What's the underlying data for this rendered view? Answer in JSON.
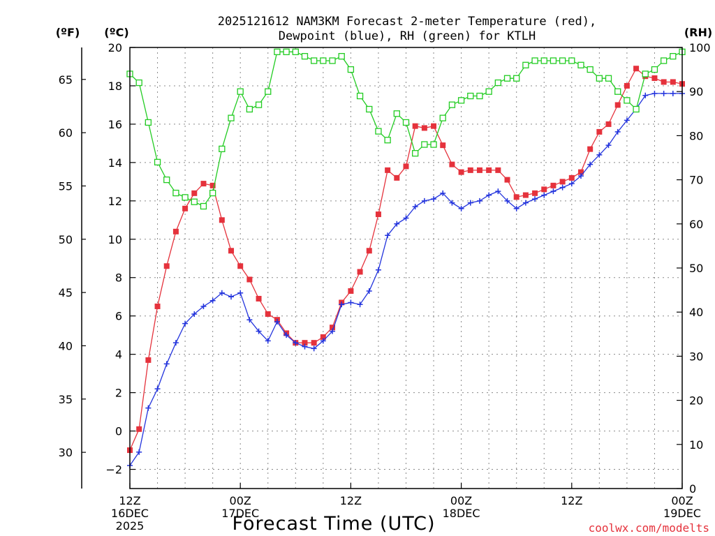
{
  "title_line1": "2025121612 NAM3KM Forecast 2-meter Temperature (red),",
  "title_line2": "Dewpoint (blue), RH (green) for KTLH",
  "units": {
    "fahrenheit": "(ºF)",
    "celsius": "(ºC)",
    "rh": "(RH)"
  },
  "xlabel": "Forecast Time (UTC)",
  "credit": "coolwx.com/modelts",
  "colors": {
    "temperature": "#e5323c",
    "dewpoint": "#2233dd",
    "rh": "#22cc22",
    "grid": "#888888"
  },
  "chart_data": {
    "type": "line",
    "title": "2025121612 NAM3KM Forecast 2-meter Temperature (red), Dewpoint (blue), RH (green) for KTLH",
    "x_unit": "forecast hour",
    "x": [
      0,
      1,
      2,
      3,
      4,
      5,
      6,
      7,
      8,
      9,
      10,
      11,
      12,
      13,
      14,
      15,
      16,
      17,
      18,
      19,
      20,
      21,
      22,
      23,
      24,
      25,
      26,
      27,
      28,
      29,
      30,
      31,
      32,
      33,
      34,
      35,
      36,
      37,
      38,
      39,
      40,
      41,
      42,
      43,
      44,
      45,
      46,
      47,
      48,
      49,
      50,
      51,
      52,
      53,
      54,
      55,
      56,
      57,
      58,
      59,
      60
    ],
    "xlim": [
      0,
      60
    ],
    "x_ticks": [
      {
        "h": 0,
        "lines": [
          "12Z",
          "16DEC",
          "2025"
        ]
      },
      {
        "h": 12,
        "lines": [
          "00Z",
          "17DEC"
        ]
      },
      {
        "h": 24,
        "lines": [
          "12Z"
        ]
      },
      {
        "h": 36,
        "lines": [
          "00Z",
          "18DEC"
        ]
      },
      {
        "h": 48,
        "lines": [
          "12Z"
        ]
      },
      {
        "h": 60,
        "lines": [
          "00Z",
          "19DEC"
        ]
      }
    ],
    "left_axis": {
      "label": "(ºC)",
      "ylim": [
        -3,
        20
      ],
      "ticks": [
        -2,
        0,
        2,
        4,
        6,
        8,
        10,
        12,
        14,
        16,
        18,
        20
      ]
    },
    "far_left_axis": {
      "label": "(ºF)",
      "ticks": [
        30,
        35,
        40,
        45,
        50,
        55,
        60,
        65
      ]
    },
    "right_axis": {
      "label": "(RH)",
      "ylim": [
        0,
        100
      ],
      "ticks": [
        0,
        10,
        20,
        30,
        40,
        50,
        60,
        70,
        80,
        90,
        100
      ]
    },
    "series": [
      {
        "name": "2-meter Temperature",
        "axis": "left",
        "marker": "filled-square",
        "color": "#e5323c",
        "values": [
          -1.0,
          0.1,
          3.7,
          6.5,
          8.6,
          10.4,
          11.6,
          12.4,
          12.9,
          12.8,
          11.0,
          9.4,
          8.6,
          7.9,
          6.9,
          6.1,
          5.8,
          5.1,
          4.6,
          4.6,
          4.6,
          4.9,
          5.4,
          6.7,
          7.3,
          8.3,
          9.4,
          11.3,
          13.6,
          13.2,
          13.8,
          15.9,
          15.8,
          15.9,
          14.9,
          13.9,
          13.5,
          13.6,
          13.6,
          13.6,
          13.6,
          13.1,
          12.2,
          12.3,
          12.4,
          12.6,
          12.8,
          13.0,
          13.2,
          13.5,
          14.7,
          15.6,
          16.0,
          17.0,
          18.0,
          18.9,
          18.5,
          18.4,
          18.2,
          18.2,
          18.1
        ]
      },
      {
        "name": "Dewpoint",
        "axis": "left",
        "marker": "plus",
        "color": "#2233dd",
        "values": [
          -1.8,
          -1.1,
          1.2,
          2.2,
          3.5,
          4.6,
          5.6,
          6.1,
          6.5,
          6.8,
          7.2,
          7.0,
          7.2,
          5.8,
          5.2,
          4.7,
          5.7,
          5.0,
          4.6,
          4.4,
          4.3,
          4.7,
          5.2,
          6.6,
          6.7,
          6.6,
          7.3,
          8.4,
          10.2,
          10.8,
          11.1,
          11.7,
          12.0,
          12.1,
          12.4,
          11.9,
          11.6,
          11.9,
          12.0,
          12.3,
          12.5,
          12.0,
          11.6,
          11.9,
          12.1,
          12.3,
          12.5,
          12.7,
          12.9,
          13.3,
          13.9,
          14.4,
          14.9,
          15.6,
          16.2,
          16.8,
          17.5,
          17.6,
          17.6,
          17.6,
          17.6
        ]
      },
      {
        "name": "RH",
        "axis": "right",
        "marker": "open-square",
        "color": "#22cc22",
        "values": [
          94,
          92,
          83,
          74,
          70,
          67,
          66,
          65,
          64,
          67,
          77,
          84,
          90,
          86,
          87,
          90,
          99,
          99,
          99,
          98,
          97,
          97,
          97,
          98,
          95,
          89,
          86,
          81,
          79,
          85,
          83,
          76,
          78,
          78,
          84,
          87,
          88,
          89,
          89,
          90,
          92,
          93,
          93,
          96,
          97,
          97,
          97,
          97,
          97,
          96,
          95,
          93,
          93,
          90,
          88,
          86,
          94,
          95,
          97,
          98,
          99
        ]
      }
    ]
  }
}
